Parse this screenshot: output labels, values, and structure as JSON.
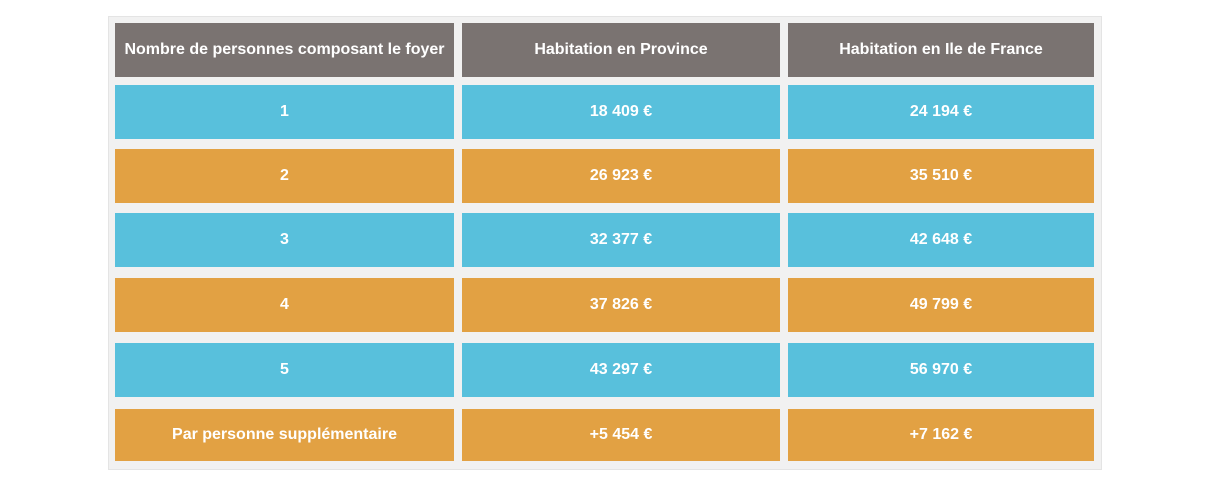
{
  "table": {
    "headers": [
      "Nombre de personnes composant le foyer",
      "Habitation en Province",
      "Habitation en Ile de France"
    ],
    "rows": [
      [
        "1",
        "18 409 €",
        "24 194 €"
      ],
      [
        "2",
        "26 923 €",
        "35 510 €"
      ],
      [
        "3",
        "32 377 €",
        "42 648 €"
      ],
      [
        "4",
        "37 826 €",
        "49 799 €"
      ],
      [
        "5",
        "43 297 €",
        "56 970 €"
      ],
      [
        "Par personne supplémentaire",
        "+5 454 €",
        "+7 162 €"
      ]
    ]
  },
  "colors": {
    "header": "#7a7371",
    "blue_row": "#58c0dc",
    "orange_row": "#e2a143",
    "frame": "#f1f1f1",
    "text": "#ffffff"
  }
}
